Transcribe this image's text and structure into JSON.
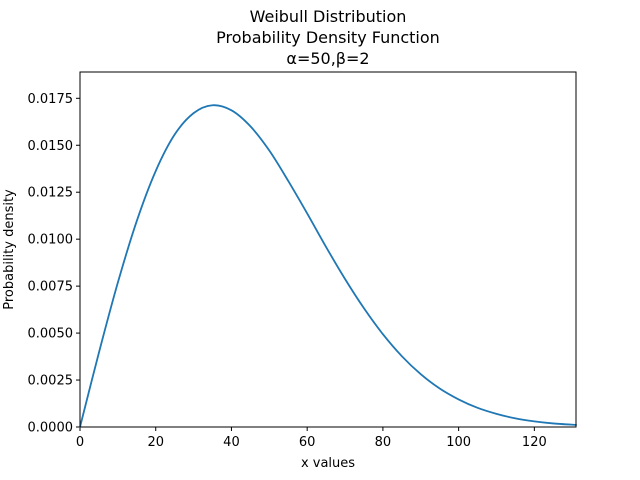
{
  "chart_data": {
    "type": "line",
    "title_lines": [
      "Weibull Distribution",
      "Probability Density Function",
      "α=50,β=2"
    ],
    "xlabel": "x values",
    "ylabel": "Probability density",
    "xlim": [
      0,
      131
    ],
    "ylim": [
      0,
      0.0189
    ],
    "grid": false,
    "x_ticks": [
      {
        "value": 0,
        "label": "0"
      },
      {
        "value": 20,
        "label": "20"
      },
      {
        "value": 40,
        "label": "40"
      },
      {
        "value": 60,
        "label": "60"
      },
      {
        "value": 80,
        "label": "80"
      },
      {
        "value": 100,
        "label": "100"
      },
      {
        "value": 120,
        "label": "120"
      }
    ],
    "y_ticks": [
      {
        "value": 0,
        "label": "0.0000"
      },
      {
        "value": 0.0025,
        "label": "0.0025"
      },
      {
        "value": 0.005,
        "label": "0.0050"
      },
      {
        "value": 0.0075,
        "label": "0.0075"
      },
      {
        "value": 0.01,
        "label": "0.0100"
      },
      {
        "value": 0.0125,
        "label": "0.0125"
      },
      {
        "value": 0.015,
        "label": "0.0150"
      },
      {
        "value": 0.0175,
        "label": "0.0175"
      }
    ],
    "series": [
      {
        "color": "#1f77b4",
        "x": [
          0,
          5,
          10,
          15,
          20,
          25,
          30,
          35,
          40,
          45,
          50,
          55,
          60,
          65,
          70,
          75,
          80,
          85,
          90,
          95,
          100,
          105,
          110,
          115,
          120,
          125,
          131
        ],
        "y": [
          0,
          0.00396,
          0.00769,
          0.01097,
          0.01363,
          0.01557,
          0.01671,
          0.01713,
          0.01686,
          0.01601,
          0.01472,
          0.0131,
          0.01137,
          0.00958,
          0.00788,
          0.00632,
          0.00494,
          0.00377,
          0.00281,
          0.00205,
          0.00147,
          0.00102,
          0.0007,
          0.00046,
          0.0003,
          0.00019,
          0.00011
        ]
      }
    ]
  }
}
